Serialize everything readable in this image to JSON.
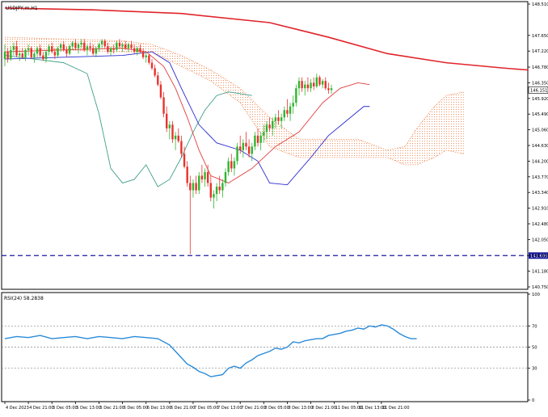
{
  "symbol_label": "USDJPY,m,H1",
  "rsi_label": "RSI(24) 58.2838",
  "colors": {
    "bull": "#2fb52f",
    "bear": "#e8322e",
    "ma": "#e0252b",
    "tenkan": "#e03c3c",
    "kijun": "#2b2bd0",
    "chikou": "#3f9f8a",
    "cloud": "#f09060",
    "rsi": "#2a8ad8",
    "support": "#1a1a9c",
    "price_tag_bg": "#ffffff",
    "support_tag_bg": "#1a1a9c"
  },
  "chart_data": [
    {
      "type": "candlestick",
      "title": "USDJPY,m,H1",
      "ylim": [
        140.75,
        148.51
      ],
      "y_ticks": [
        "148.510",
        "147.650",
        "147.220",
        "146.780",
        "146.350",
        "145.920",
        "145.490",
        "145.060",
        "144.630",
        "144.200",
        "143.770",
        "143.340",
        "142.910",
        "142.480",
        "142.050",
        "141.610",
        "141.180",
        "140.750"
      ],
      "current_price": "146.151",
      "support_level": 141.609,
      "support_label": "141.609",
      "x_ticks": [
        "4 Dec 2023",
        "4 Dec 21:00",
        "5 Dec 05:00",
        "5 Dec 13:00",
        "5 Dec 21:00",
        "6 Dec 05:00",
        "6 Dec 13:00",
        "6 Dec 21:00",
        "7 Dec 05:00",
        "7 Dec 13:00",
        "7 Dec 21:00",
        "8 Dec 05:00",
        "8 Dec 13:00",
        "8 Dec 21:00",
        "11 Dec 05:00",
        "11 Dec 13:00",
        "11 Dec 21:00"
      ],
      "x_tick_index": [
        0,
        8,
        16,
        24,
        32,
        40,
        48,
        56,
        64,
        72,
        80,
        88,
        96,
        104,
        112,
        120,
        128
      ],
      "candles": [
        [
          147.0,
          147.4,
          146.8,
          147.2
        ],
        [
          147.2,
          147.3,
          146.9,
          147.0
        ],
        [
          147.0,
          147.35,
          146.95,
          147.25
        ],
        [
          147.25,
          147.45,
          147.1,
          147.35
        ],
        [
          147.35,
          147.5,
          147.05,
          147.1
        ],
        [
          147.1,
          147.25,
          146.95,
          147.15
        ],
        [
          147.15,
          147.3,
          147.0,
          147.05
        ],
        [
          147.05,
          147.3,
          146.95,
          147.25
        ],
        [
          147.25,
          147.4,
          147.1,
          147.3
        ],
        [
          147.3,
          147.35,
          147.0,
          147.05
        ],
        [
          147.05,
          147.2,
          146.9,
          147.15
        ],
        [
          147.15,
          147.35,
          147.05,
          147.3
        ],
        [
          147.3,
          147.4,
          147.05,
          147.1
        ],
        [
          147.1,
          147.2,
          146.95,
          147.0
        ],
        [
          147.0,
          147.25,
          146.9,
          147.2
        ],
        [
          147.2,
          147.4,
          147.1,
          147.35
        ],
        [
          147.35,
          147.45,
          147.15,
          147.2
        ],
        [
          147.2,
          147.3,
          147.0,
          147.1
        ],
        [
          147.1,
          147.35,
          147.05,
          147.3
        ],
        [
          147.3,
          147.45,
          147.2,
          147.4
        ],
        [
          147.4,
          147.5,
          147.2,
          147.25
        ],
        [
          147.25,
          147.35,
          147.05,
          147.15
        ],
        [
          147.15,
          147.4,
          147.1,
          147.35
        ],
        [
          147.35,
          147.5,
          147.25,
          147.45
        ],
        [
          147.45,
          147.55,
          147.25,
          147.3
        ],
        [
          147.3,
          147.45,
          147.15,
          147.4
        ],
        [
          147.4,
          147.55,
          147.3,
          147.45
        ],
        [
          147.45,
          147.55,
          147.2,
          147.25
        ],
        [
          147.25,
          147.4,
          147.1,
          147.35
        ],
        [
          147.35,
          147.45,
          147.2,
          147.3
        ],
        [
          147.3,
          147.4,
          147.1,
          147.15
        ],
        [
          147.15,
          147.35,
          147.05,
          147.3
        ],
        [
          147.3,
          147.45,
          147.2,
          147.4
        ],
        [
          147.4,
          147.55,
          147.3,
          147.5
        ],
        [
          147.5,
          147.55,
          147.3,
          147.35
        ],
        [
          147.35,
          147.45,
          147.15,
          147.2
        ],
        [
          147.2,
          147.35,
          147.1,
          147.3
        ],
        [
          147.3,
          147.4,
          147.15,
          147.25
        ],
        [
          147.25,
          147.5,
          147.2,
          147.45
        ],
        [
          147.45,
          147.55,
          147.3,
          147.35
        ],
        [
          147.35,
          147.45,
          147.2,
          147.4
        ],
        [
          147.4,
          147.5,
          147.25,
          147.3
        ],
        [
          147.3,
          147.45,
          147.2,
          147.4
        ],
        [
          147.4,
          147.5,
          147.25,
          147.3
        ],
        [
          147.3,
          147.4,
          147.15,
          147.2
        ],
        [
          147.2,
          147.35,
          147.1,
          147.3
        ],
        [
          147.3,
          147.4,
          147.15,
          147.2
        ],
        [
          147.2,
          147.3,
          147.0,
          147.05
        ],
        [
          147.05,
          147.2,
          146.9,
          147.1
        ],
        [
          147.1,
          147.15,
          146.85,
          146.9
        ],
        [
          146.9,
          147.0,
          146.7,
          146.75
        ],
        [
          146.75,
          146.85,
          146.5,
          146.55
        ],
        [
          146.55,
          146.65,
          146.25,
          146.3
        ],
        [
          146.3,
          146.4,
          145.9,
          145.95
        ],
        [
          145.95,
          146.1,
          145.4,
          145.5
        ],
        [
          145.5,
          145.7,
          145.0,
          145.1
        ],
        [
          145.1,
          145.3,
          144.8,
          145.2
        ],
        [
          145.2,
          145.3,
          144.7,
          144.8
        ],
        [
          144.8,
          145.0,
          144.5,
          144.9
        ],
        [
          144.9,
          145.1,
          144.7,
          144.75
        ],
        [
          144.75,
          144.9,
          144.3,
          144.4
        ],
        [
          144.4,
          144.6,
          144.0,
          144.05
        ],
        [
          144.05,
          144.2,
          143.5,
          143.6
        ],
        [
          143.6,
          143.8,
          141.65,
          143.4
        ],
        [
          143.4,
          143.7,
          143.2,
          143.6
        ],
        [
          143.6,
          143.8,
          143.3,
          143.4
        ],
        [
          143.4,
          143.9,
          143.3,
          143.8
        ],
        [
          143.8,
          144.1,
          143.6,
          143.7
        ],
        [
          143.7,
          144.0,
          143.5,
          143.9
        ],
        [
          143.9,
          144.1,
          143.5,
          143.6
        ],
        [
          143.6,
          143.8,
          143.1,
          143.2
        ],
        [
          143.2,
          143.4,
          142.9,
          143.3
        ],
        [
          143.3,
          143.6,
          143.1,
          143.5
        ],
        [
          143.5,
          143.8,
          143.3,
          143.4
        ],
        [
          143.4,
          143.7,
          143.2,
          143.6
        ],
        [
          143.6,
          144.0,
          143.5,
          143.9
        ],
        [
          143.9,
          144.3,
          143.8,
          144.2
        ],
        [
          144.2,
          144.4,
          143.9,
          144.0
        ],
        [
          144.0,
          144.3,
          143.8,
          144.2
        ],
        [
          144.2,
          144.7,
          144.1,
          144.6
        ],
        [
          144.6,
          144.9,
          144.4,
          144.5
        ],
        [
          144.5,
          144.8,
          144.3,
          144.7
        ],
        [
          144.7,
          145.0,
          144.5,
          144.6
        ],
        [
          144.6,
          144.8,
          144.3,
          144.4
        ],
        [
          144.4,
          144.7,
          144.2,
          144.6
        ],
        [
          144.6,
          145.0,
          144.5,
          144.9
        ],
        [
          144.9,
          145.1,
          144.6,
          144.7
        ],
        [
          144.7,
          145.0,
          144.5,
          144.9
        ],
        [
          144.9,
          145.2,
          144.7,
          145.0
        ],
        [
          145.0,
          145.3,
          144.8,
          145.2
        ],
        [
          145.2,
          145.4,
          145.0,
          145.1
        ],
        [
          145.1,
          145.4,
          144.9,
          145.3
        ],
        [
          145.3,
          145.5,
          145.1,
          145.4
        ],
        [
          145.4,
          145.6,
          145.2,
          145.3
        ],
        [
          145.3,
          145.5,
          145.1,
          145.4
        ],
        [
          145.4,
          145.7,
          145.3,
          145.6
        ],
        [
          145.6,
          145.9,
          145.4,
          145.5
        ],
        [
          145.5,
          145.8,
          145.3,
          145.7
        ],
        [
          145.7,
          146.0,
          145.5,
          145.8
        ],
        [
          145.8,
          146.3,
          145.7,
          146.2
        ],
        [
          146.2,
          146.5,
          146.0,
          146.4
        ],
        [
          146.4,
          146.5,
          146.1,
          146.2
        ],
        [
          146.2,
          146.4,
          146.0,
          146.3
        ],
        [
          146.3,
          146.5,
          146.1,
          146.2
        ],
        [
          146.2,
          146.45,
          146.1,
          146.35
        ],
        [
          146.35,
          146.5,
          146.15,
          146.25
        ],
        [
          146.25,
          146.6,
          146.2,
          146.5
        ],
        [
          146.5,
          146.55,
          146.25,
          146.3
        ],
        [
          146.3,
          146.45,
          146.2,
          146.4
        ],
        [
          146.4,
          146.5,
          146.15,
          146.2
        ],
        [
          146.2,
          146.35,
          146.05,
          146.15
        ],
        [
          146.15,
          146.3,
          146.05,
          146.2
        ]
      ],
      "overlays": {
        "moving_average": [
          [
            0,
            148.4
          ],
          [
            30,
            148.35
          ],
          [
            60,
            148.25
          ],
          [
            90,
            148.0
          ],
          [
            110,
            147.6
          ],
          [
            130,
            147.15
          ],
          [
            150,
            146.9
          ],
          [
            170,
            146.75
          ],
          [
            178,
            146.7
          ]
        ],
        "tenkan": [
          [
            0,
            147.2
          ],
          [
            20,
            147.25
          ],
          [
            40,
            147.3
          ],
          [
            48,
            147.2
          ],
          [
            54,
            146.8
          ],
          [
            58,
            146.2
          ],
          [
            62,
            145.4
          ],
          [
            66,
            144.5
          ],
          [
            70,
            143.8
          ],
          [
            76,
            143.6
          ],
          [
            84,
            144.0
          ],
          [
            92,
            144.6
          ],
          [
            100,
            145.0
          ],
          [
            108,
            145.8
          ],
          [
            114,
            146.2
          ],
          [
            120,
            146.35
          ],
          [
            124,
            146.3
          ]
        ],
        "kijun": [
          [
            0,
            147.0
          ],
          [
            20,
            147.05
          ],
          [
            40,
            147.1
          ],
          [
            50,
            147.2
          ],
          [
            56,
            146.9
          ],
          [
            60,
            146.2
          ],
          [
            66,
            145.2
          ],
          [
            72,
            144.7
          ],
          [
            80,
            144.5
          ],
          [
            86,
            144.2
          ],
          [
            90,
            143.6
          ],
          [
            96,
            143.55
          ],
          [
            104,
            144.3
          ],
          [
            110,
            144.9
          ],
          [
            116,
            145.3
          ],
          [
            122,
            145.7
          ],
          [
            124,
            145.7
          ]
        ],
        "chikou": [
          [
            0,
            147.1
          ],
          [
            10,
            147.0
          ],
          [
            20,
            146.9
          ],
          [
            28,
            146.6
          ],
          [
            32,
            145.5
          ],
          [
            36,
            144.0
          ],
          [
            40,
            143.6
          ],
          [
            44,
            143.7
          ],
          [
            48,
            144.1
          ],
          [
            52,
            143.5
          ],
          [
            56,
            143.7
          ],
          [
            60,
            144.3
          ],
          [
            64,
            145.0
          ],
          [
            68,
            145.6
          ],
          [
            72,
            146.0
          ],
          [
            76,
            146.1
          ],
          [
            80,
            146.05
          ],
          [
            84,
            146.0
          ]
        ],
        "cloud": [
          [
            0,
            147.6,
            147.3
          ],
          [
            20,
            147.55,
            147.25
          ],
          [
            40,
            147.5,
            147.2
          ],
          [
            50,
            147.4,
            147.2
          ],
          [
            60,
            147.1,
            146.8
          ],
          [
            70,
            146.7,
            146.4
          ],
          [
            80,
            146.2,
            145.8
          ],
          [
            90,
            145.4,
            144.6
          ],
          [
            100,
            144.8,
            144.3
          ],
          [
            110,
            144.8,
            144.3
          ],
          [
            120,
            144.8,
            144.3
          ],
          [
            130,
            144.5,
            144.3
          ],
          [
            136,
            144.6,
            144.1
          ],
          [
            140,
            145.1,
            144.1
          ],
          [
            146,
            145.7,
            144.3
          ],
          [
            150,
            146.0,
            144.5
          ],
          [
            156,
            146.1,
            144.4
          ]
        ]
      }
    },
    {
      "type": "line",
      "title": "RSI(24) 58.2838",
      "ylim": [
        0,
        100
      ],
      "y_ticks": [
        "100",
        "70",
        "50",
        "30",
        "0"
      ],
      "levels": [
        70,
        50,
        30
      ],
      "values": [
        [
          0,
          58
        ],
        [
          4,
          60
        ],
        [
          8,
          59
        ],
        [
          12,
          61
        ],
        [
          16,
          58
        ],
        [
          20,
          59
        ],
        [
          24,
          60
        ],
        [
          28,
          58
        ],
        [
          32,
          60
        ],
        [
          36,
          59
        ],
        [
          40,
          58
        ],
        [
          44,
          60
        ],
        [
          48,
          59
        ],
        [
          52,
          58
        ],
        [
          56,
          52
        ],
        [
          58,
          46
        ],
        [
          60,
          40
        ],
        [
          62,
          34
        ],
        [
          64,
          31
        ],
        [
          66,
          27
        ],
        [
          68,
          25
        ],
        [
          70,
          22
        ],
        [
          72,
          23
        ],
        [
          74,
          24
        ],
        [
          76,
          30
        ],
        [
          78,
          32
        ],
        [
          80,
          30
        ],
        [
          82,
          35
        ],
        [
          84,
          38
        ],
        [
          86,
          42
        ],
        [
          88,
          44
        ],
        [
          90,
          46
        ],
        [
          92,
          49
        ],
        [
          94,
          48
        ],
        [
          96,
          50
        ],
        [
          98,
          55
        ],
        [
          100,
          54
        ],
        [
          102,
          56
        ],
        [
          104,
          57
        ],
        [
          106,
          58
        ],
        [
          108,
          58
        ],
        [
          110,
          61
        ],
        [
          112,
          62
        ],
        [
          114,
          63
        ],
        [
          116,
          65
        ],
        [
          118,
          66
        ],
        [
          120,
          68
        ],
        [
          122,
          67
        ],
        [
          124,
          70
        ],
        [
          126,
          69
        ],
        [
          128,
          71
        ],
        [
          130,
          70
        ],
        [
          132,
          67
        ],
        [
          134,
          63
        ],
        [
          136,
          60
        ],
        [
          138,
          58
        ],
        [
          140,
          58
        ]
      ]
    }
  ]
}
